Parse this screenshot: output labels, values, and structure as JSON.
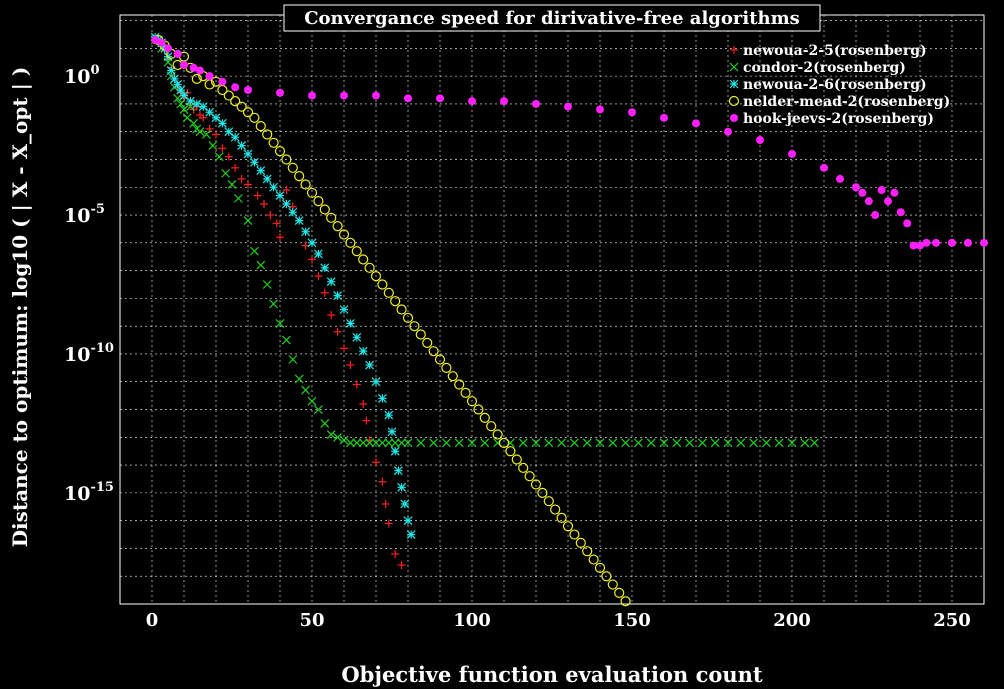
{
  "chart_data": {
    "type": "scatter",
    "title": "Convergance speed for dirivative-free algorithms",
    "xlabel": "Objective function evaluation count",
    "ylabel": "Distance to optimum:  log10 ( | X - X_opt | )",
    "xlim": [
      -10,
      260
    ],
    "xticks": [
      0,
      50,
      100,
      150,
      200,
      250
    ],
    "ylim": [
      -19,
      2.2
    ],
    "yscale": "log10",
    "yticks": [
      {
        "value": 0,
        "label_base": "10",
        "label_exp": "0"
      },
      {
        "value": -5,
        "label_base": "10",
        "label_exp": "-5"
      },
      {
        "value": -10,
        "label_base": "10",
        "label_exp": "-10"
      },
      {
        "value": -15,
        "label_base": "10",
        "label_exp": "-15"
      }
    ],
    "grid": true,
    "legend_position": "top-right",
    "series": [
      {
        "name": "newoua-2-5(rosenberg)",
        "marker": "plus",
        "color": "#ff2020",
        "points": [
          [
            1,
            1.3
          ],
          [
            2,
            1.2
          ],
          [
            3,
            1.1
          ],
          [
            4,
            0.9
          ],
          [
            5,
            0.6
          ],
          [
            6,
            0.3
          ],
          [
            7,
            0.0
          ],
          [
            8,
            -0.4
          ],
          [
            9,
            -0.6
          ],
          [
            10,
            -0.8
          ],
          [
            11,
            -0.6
          ],
          [
            12,
            -1.0
          ],
          [
            13,
            -1.2
          ],
          [
            14,
            -1.1
          ],
          [
            15,
            -1.4
          ],
          [
            16,
            -1.5
          ],
          [
            18,
            -1.9
          ],
          [
            20,
            -2.1
          ],
          [
            22,
            -2.6
          ],
          [
            24,
            -2.9
          ],
          [
            26,
            -3.3
          ],
          [
            28,
            -3.7
          ],
          [
            30,
            -3.9
          ],
          [
            33,
            -4.3
          ],
          [
            35,
            -4.6
          ],
          [
            37,
            -5.0
          ],
          [
            39,
            -5.3
          ],
          [
            40,
            -5.8
          ],
          [
            42,
            -4.1
          ],
          [
            44,
            -4.7
          ],
          [
            46,
            -5.2
          ],
          [
            48,
            -6.1
          ],
          [
            50,
            -6.6
          ],
          [
            52,
            -7.2
          ],
          [
            54,
            -7.8
          ],
          [
            56,
            -8.6
          ],
          [
            58,
            -9.2
          ],
          [
            60,
            -9.8
          ],
          [
            62,
            -10.4
          ],
          [
            64,
            -11.1
          ],
          [
            66,
            -11.8
          ],
          [
            67,
            -12.4
          ],
          [
            68,
            -13.1
          ],
          [
            70,
            -13.9
          ],
          [
            72,
            -14.6
          ],
          [
            73,
            -15.4
          ],
          [
            74,
            -16.1
          ],
          [
            76,
            -17.2
          ],
          [
            78,
            -17.6
          ]
        ]
      },
      {
        "name": "condor-2(rosenberg)",
        "marker": "cross",
        "color": "#20d020",
        "points": [
          [
            1,
            1.3
          ],
          [
            3,
            1.0
          ],
          [
            5,
            0.5
          ],
          [
            6,
            0.0
          ],
          [
            7,
            -0.4
          ],
          [
            8,
            -0.8
          ],
          [
            9,
            -1.0
          ],
          [
            10,
            -1.2
          ],
          [
            11,
            -1.5
          ],
          [
            12,
            -1.1
          ],
          [
            13,
            -1.7
          ],
          [
            14,
            -1.9
          ],
          [
            15,
            -2.0
          ],
          [
            17,
            -2.1
          ],
          [
            19,
            -2.5
          ],
          [
            21,
            -2.9
          ],
          [
            23,
            -3.5
          ],
          [
            25,
            -3.9
          ],
          [
            27,
            -4.4
          ],
          [
            30,
            -5.2
          ],
          [
            32,
            -6.3
          ],
          [
            34,
            -6.8
          ],
          [
            36,
            -7.5
          ],
          [
            38,
            -8.2
          ],
          [
            40,
            -8.9
          ],
          [
            42,
            -9.5
          ],
          [
            44,
            -10.2
          ],
          [
            46,
            -10.9
          ],
          [
            48,
            -11.3
          ],
          [
            50,
            -11.7
          ],
          [
            52,
            -12.0
          ],
          [
            54,
            -12.5
          ],
          [
            56,
            -12.9
          ],
          [
            58,
            -13.0
          ],
          [
            60,
            -13.1
          ],
          [
            62,
            -13.2
          ],
          [
            64,
            -13.2
          ],
          [
            66,
            -13.2
          ],
          [
            68,
            -13.2
          ],
          [
            70,
            -13.2
          ],
          [
            72,
            -13.2
          ],
          [
            74,
            -13.2
          ],
          [
            76,
            -13.2
          ],
          [
            78,
            -13.2
          ],
          [
            80,
            -13.2
          ],
          [
            84,
            -13.2
          ],
          [
            88,
            -13.2
          ],
          [
            92,
            -13.2
          ],
          [
            96,
            -13.2
          ],
          [
            100,
            -13.2
          ],
          [
            104,
            -13.2
          ],
          [
            108,
            -13.2
          ],
          [
            112,
            -13.2
          ],
          [
            116,
            -13.2
          ],
          [
            120,
            -13.2
          ],
          [
            124,
            -13.2
          ],
          [
            128,
            -13.2
          ],
          [
            132,
            -13.2
          ],
          [
            136,
            -13.2
          ],
          [
            140,
            -13.2
          ],
          [
            144,
            -13.2
          ],
          [
            148,
            -13.2
          ],
          [
            152,
            -13.2
          ],
          [
            156,
            -13.2
          ],
          [
            160,
            -13.2
          ],
          [
            164,
            -13.2
          ],
          [
            168,
            -13.2
          ],
          [
            172,
            -13.2
          ],
          [
            176,
            -13.2
          ],
          [
            180,
            -13.2
          ],
          [
            184,
            -13.2
          ],
          [
            188,
            -13.2
          ],
          [
            192,
            -13.2
          ],
          [
            196,
            -13.2
          ],
          [
            200,
            -13.2
          ],
          [
            204,
            -13.2
          ],
          [
            207,
            -13.2
          ]
        ]
      },
      {
        "name": "newoua-2-6(rosenberg)",
        "marker": "star",
        "color": "#20e8e8",
        "points": [
          [
            1,
            1.4
          ],
          [
            2,
            1.3
          ],
          [
            3,
            1.2
          ],
          [
            4,
            1.0
          ],
          [
            5,
            0.7
          ],
          [
            6,
            0.2
          ],
          [
            7,
            -0.1
          ],
          [
            8,
            -0.3
          ],
          [
            9,
            -0.5
          ],
          [
            10,
            -0.7
          ],
          [
            12,
            -0.9
          ],
          [
            14,
            -1.0
          ],
          [
            16,
            -1.1
          ],
          [
            18,
            -1.3
          ],
          [
            20,
            -1.5
          ],
          [
            22,
            -1.7
          ],
          [
            24,
            -2.0
          ],
          [
            26,
            -2.2
          ],
          [
            28,
            -2.5
          ],
          [
            30,
            -2.8
          ],
          [
            32,
            -3.1
          ],
          [
            34,
            -3.4
          ],
          [
            36,
            -3.7
          ],
          [
            38,
            -4.0
          ],
          [
            40,
            -4.3
          ],
          [
            42,
            -4.6
          ],
          [
            44,
            -4.9
          ],
          [
            46,
            -5.2
          ],
          [
            48,
            -5.6
          ],
          [
            50,
            -6.0
          ],
          [
            52,
            -6.4
          ],
          [
            54,
            -6.9
          ],
          [
            56,
            -7.4
          ],
          [
            58,
            -7.9
          ],
          [
            60,
            -8.4
          ],
          [
            62,
            -8.9
          ],
          [
            64,
            -9.4
          ],
          [
            66,
            -9.9
          ],
          [
            68,
            -10.4
          ],
          [
            70,
            -11.0
          ],
          [
            72,
            -11.6
          ],
          [
            74,
            -12.2
          ],
          [
            75,
            -12.8
          ],
          [
            76,
            -13.5
          ],
          [
            77,
            -14.2
          ],
          [
            78,
            -14.8
          ],
          [
            79,
            -15.4
          ],
          [
            80,
            -16.0
          ],
          [
            81,
            -16.5
          ]
        ]
      },
      {
        "name": "nelder-mead-2(rosenberg)",
        "marker": "circle",
        "color": "#f0f020",
        "points": [
          [
            2,
            1.3
          ],
          [
            4,
            1.1
          ],
          [
            6,
            0.8
          ],
          [
            8,
            0.4
          ],
          [
            10,
            0.7
          ],
          [
            12,
            0.3
          ],
          [
            14,
            -0.1
          ],
          [
            16,
            0.0
          ],
          [
            18,
            -0.3
          ],
          [
            20,
            -0.2
          ],
          [
            22,
            -0.5
          ],
          [
            24,
            -0.7
          ],
          [
            26,
            -0.9
          ],
          [
            28,
            -1.1
          ],
          [
            30,
            -1.3
          ],
          [
            32,
            -1.5
          ],
          [
            34,
            -1.8
          ],
          [
            36,
            -2.1
          ],
          [
            38,
            -2.4
          ],
          [
            40,
            -2.7
          ],
          [
            42,
            -3.0
          ],
          [
            44,
            -3.3
          ],
          [
            46,
            -3.6
          ],
          [
            48,
            -3.9
          ],
          [
            50,
            -4.2
          ],
          [
            52,
            -4.5
          ],
          [
            54,
            -4.8
          ],
          [
            56,
            -5.1
          ],
          [
            58,
            -5.4
          ],
          [
            60,
            -5.7
          ],
          [
            62,
            -6.0
          ],
          [
            64,
            -6.3
          ],
          [
            66,
            -6.6
          ],
          [
            68,
            -6.9
          ],
          [
            70,
            -7.2
          ],
          [
            72,
            -7.5
          ],
          [
            74,
            -7.8
          ],
          [
            76,
            -8.1
          ],
          [
            78,
            -8.4
          ],
          [
            80,
            -8.7
          ],
          [
            82,
            -9.0
          ],
          [
            84,
            -9.3
          ],
          [
            86,
            -9.6
          ],
          [
            88,
            -9.9
          ],
          [
            90,
            -10.2
          ],
          [
            92,
            -10.5
          ],
          [
            94,
            -10.8
          ],
          [
            96,
            -11.1
          ],
          [
            98,
            -11.4
          ],
          [
            100,
            -11.7
          ],
          [
            102,
            -12.0
          ],
          [
            104,
            -12.3
          ],
          [
            106,
            -12.6
          ],
          [
            108,
            -12.9
          ],
          [
            110,
            -13.2
          ],
          [
            112,
            -13.5
          ],
          [
            114,
            -13.8
          ],
          [
            116,
            -14.1
          ],
          [
            118,
            -14.4
          ],
          [
            120,
            -14.7
          ],
          [
            122,
            -15.0
          ],
          [
            124,
            -15.3
          ],
          [
            126,
            -15.6
          ],
          [
            128,
            -15.9
          ],
          [
            130,
            -16.2
          ],
          [
            132,
            -16.5
          ],
          [
            134,
            -16.8
          ],
          [
            136,
            -17.1
          ],
          [
            138,
            -17.4
          ],
          [
            140,
            -17.7
          ],
          [
            142,
            -18.0
          ],
          [
            144,
            -18.3
          ],
          [
            146,
            -18.6
          ],
          [
            148,
            -18.9
          ]
        ]
      },
      {
        "name": "hook-jeevs-2(rosenberg)",
        "marker": "dot",
        "color": "#ff20ff",
        "points": [
          [
            1,
            1.3
          ],
          [
            3,
            1.2
          ],
          [
            5,
            1.0
          ],
          [
            8,
            0.8
          ],
          [
            10,
            0.4
          ],
          [
            13,
            0.3
          ],
          [
            15,
            0.2
          ],
          [
            18,
            0.0
          ],
          [
            22,
            -0.2
          ],
          [
            26,
            -0.4
          ],
          [
            30,
            -0.5
          ],
          [
            40,
            -0.6
          ],
          [
            50,
            -0.7
          ],
          [
            60,
            -0.7
          ],
          [
            70,
            -0.7
          ],
          [
            80,
            -0.8
          ],
          [
            90,
            -0.8
          ],
          [
            100,
            -0.9
          ],
          [
            110,
            -0.9
          ],
          [
            120,
            -1.0
          ],
          [
            130,
            -1.1
          ],
          [
            140,
            -1.2
          ],
          [
            150,
            -1.3
          ],
          [
            160,
            -1.5
          ],
          [
            170,
            -1.7
          ],
          [
            180,
            -2.0
          ],
          [
            190,
            -2.3
          ],
          [
            200,
            -2.8
          ],
          [
            210,
            -3.3
          ],
          [
            215,
            -3.7
          ],
          [
            220,
            -4.0
          ],
          [
            222,
            -4.2
          ],
          [
            224,
            -4.5
          ],
          [
            226,
            -5.0
          ],
          [
            228,
            -4.1
          ],
          [
            230,
            -4.5
          ],
          [
            232,
            -4.2
          ],
          [
            234,
            -4.9
          ],
          [
            236,
            -5.3
          ],
          [
            238,
            -6.1
          ],
          [
            240,
            -6.1
          ],
          [
            242,
            -6.0
          ],
          [
            245,
            -6.0
          ],
          [
            250,
            -6.0
          ],
          [
            255,
            -6.0
          ],
          [
            260,
            -6.0
          ]
        ]
      }
    ]
  }
}
